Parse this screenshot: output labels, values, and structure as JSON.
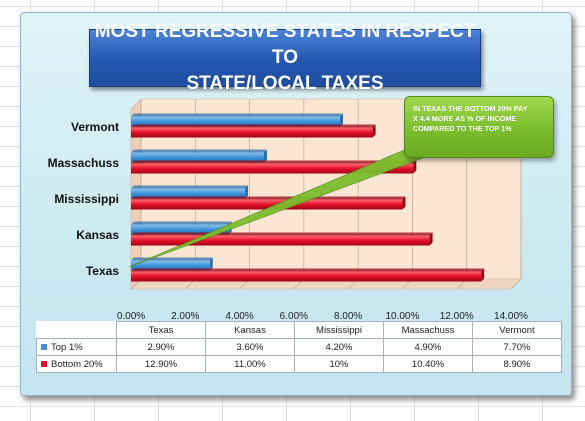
{
  "title": {
    "line1": "MOST REGRESSIVE STATES IN RESPECT TO",
    "line2": "STATE/LOCAL TAXES"
  },
  "callout": {
    "line1": "IN TEXAS THE BOTTOM 20% PAY",
    "line2": "X 4.4  MORE AS % OF INCOME",
    "line3": "COMPARED TO THE TOP  1%"
  },
  "colors": {
    "top_series": "#3f93d8",
    "bottom_series": "#e5102a",
    "plot_bg": "#fbe6d4",
    "callout": "#7cbd2d",
    "title_bg": "#2457b0"
  },
  "chart_data": {
    "type": "bar",
    "orientation": "horizontal",
    "categories": [
      "Texas",
      "Kansas",
      "Mississippi",
      "Massachuss",
      "Vermont"
    ],
    "series": [
      {
        "name": "Top 1%",
        "values": [
          2.9,
          3.6,
          4.2,
          4.9,
          7.7
        ]
      },
      {
        "name": "Bottom 20%",
        "values": [
          12.9,
          11.0,
          10.0,
          10.4,
          8.9
        ]
      }
    ],
    "xlim": [
      0,
      14
    ],
    "xticks": [
      0,
      2,
      4,
      6,
      8,
      10,
      12,
      14
    ],
    "xtick_labels": [
      "0.00%",
      "2.00%",
      "4.00%",
      "6.00%",
      "8.00%",
      "10.00%",
      "12.00%",
      "14.00%"
    ],
    "grid": true,
    "legend": "data-table",
    "table": {
      "header": [
        "Texas",
        "Kansas",
        "Mississippi",
        "Massachuss",
        "Vermont"
      ],
      "rows": [
        {
          "label": "Top 1%",
          "cells": [
            "2.90%",
            "3.60%",
            "4.20%",
            "4.90%",
            "7.70%"
          ]
        },
        {
          "label": "Bottom 20%",
          "cells": [
            "12.90%",
            "11.00%",
            "10%",
            "10.40%",
            "8.90%"
          ]
        }
      ]
    }
  }
}
